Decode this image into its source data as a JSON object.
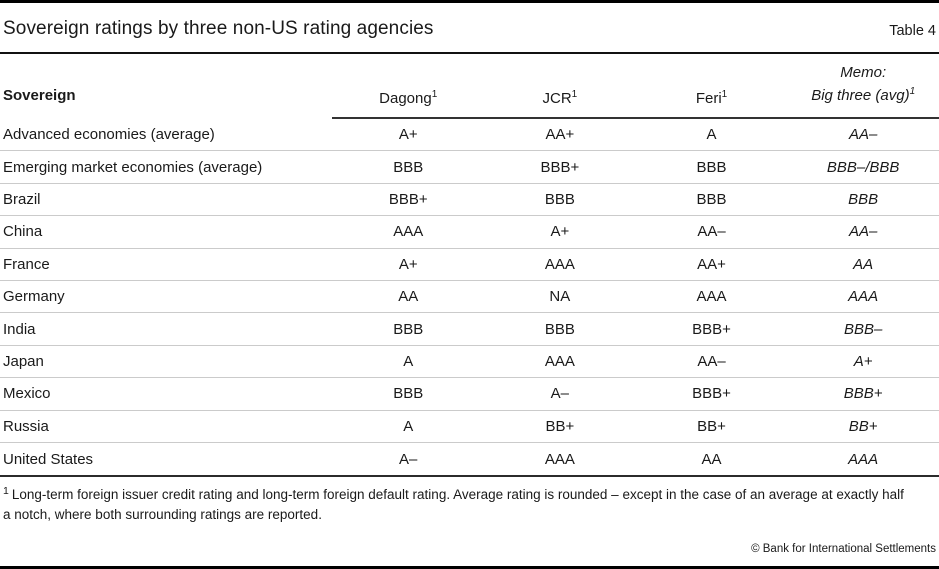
{
  "header": {
    "title": "Sovereign ratings by three non-US rating agencies",
    "table_label": "Table 4"
  },
  "table": {
    "row_header": "Sovereign",
    "columns": [
      {
        "label": "Dagong",
        "sup": "1"
      },
      {
        "label": "JCR",
        "sup": "1"
      },
      {
        "label": "Feri",
        "sup": "1"
      },
      {
        "line1": "Memo:",
        "line2": "Big three (avg)",
        "sup": "1"
      }
    ],
    "rows": [
      {
        "cells": [
          "Advanced economies (average)",
          "A+",
          "AA+",
          "A",
          "AA–"
        ]
      },
      {
        "cells": [
          "Emerging market economies (average)",
          "BBB",
          "BBB+",
          "BBB",
          "BBB–/BBB"
        ]
      },
      {
        "cells": [
          "Brazil",
          "BBB+",
          "BBB",
          "BBB",
          "BBB"
        ]
      },
      {
        "cells": [
          "China",
          "AAA",
          "A+",
          "AA–",
          "AA–"
        ]
      },
      {
        "cells": [
          "France",
          "A+",
          "AAA",
          "AA+",
          "AA"
        ]
      },
      {
        "cells": [
          "Germany",
          "AA",
          "NA",
          "AAA",
          "AAA"
        ]
      },
      {
        "cells": [
          "India",
          "BBB",
          "BBB",
          "BBB+",
          "BBB–"
        ]
      },
      {
        "cells": [
          "Japan",
          "A",
          "AAA",
          "AA–",
          "A+"
        ]
      },
      {
        "cells": [
          "Mexico",
          "BBB",
          "A–",
          "BBB+",
          "BBB+"
        ]
      },
      {
        "cells": [
          "Russia",
          "A",
          "BB+",
          "BB+",
          "BB+"
        ]
      },
      {
        "cells": [
          "United States",
          "A–",
          "AAA",
          "AA",
          "AAA"
        ]
      }
    ]
  },
  "footnote": {
    "marker": "1",
    "text": "Long-term foreign issuer credit rating and long-term foreign default rating. Average rating is rounded – except in the case of an average at exactly half a notch, where both surrounding ratings are reported."
  },
  "copyright": "© Bank for International Settlements"
}
